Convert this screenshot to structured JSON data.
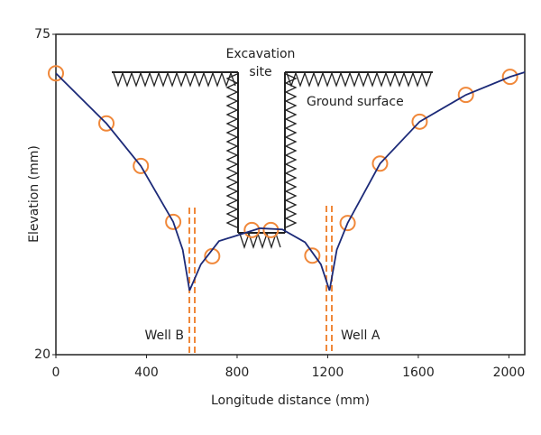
{
  "chart_data": {
    "type": "scatter",
    "xlabel": "Longitude distance (mm)",
    "ylabel": "Elevation (mm)",
    "xlim": [
      0,
      2070
    ],
    "ylim": [
      20,
      75
    ],
    "xticks": [
      0,
      400,
      800,
      1200,
      1600,
      2000
    ],
    "yticks": [
      20,
      75
    ],
    "series": [
      {
        "mark": "circle",
        "color": "#f0883a",
        "x": [
          0,
          223,
          375,
          518,
          690,
          865,
          949,
          1132,
          1288,
          1431,
          1606,
          1810,
          2005
        ],
        "values": [
          68.3,
          59.7,
          52.4,
          42.8,
          36.9,
          41.4,
          41.4,
          37.0,
          42.6,
          52.8,
          60.0,
          64.6,
          67.7
        ]
      },
      {
        "mark": "line",
        "color": "#1c2a78",
        "x": [
          0,
          223,
          375,
          518,
          560,
          590,
          null,
          590,
          640,
          720,
          900,
          1000,
          1100,
          1170,
          1208,
          null,
          1208,
          1240,
          1288,
          1431,
          1606,
          1810,
          2005,
          2070
        ],
        "values": [
          68.3,
          59.7,
          52.4,
          42.8,
          38.0,
          31.0,
          null,
          31.0,
          35.5,
          39.5,
          41.7,
          41.5,
          39.3,
          35.5,
          31.0,
          null,
          31.0,
          38.0,
          42.6,
          52.8,
          60.0,
          64.6,
          67.7,
          68.5
        ]
      }
    ],
    "annotations": [
      "Excavation",
      "site",
      "Ground surface",
      "Well B",
      "Well A"
    ]
  }
}
